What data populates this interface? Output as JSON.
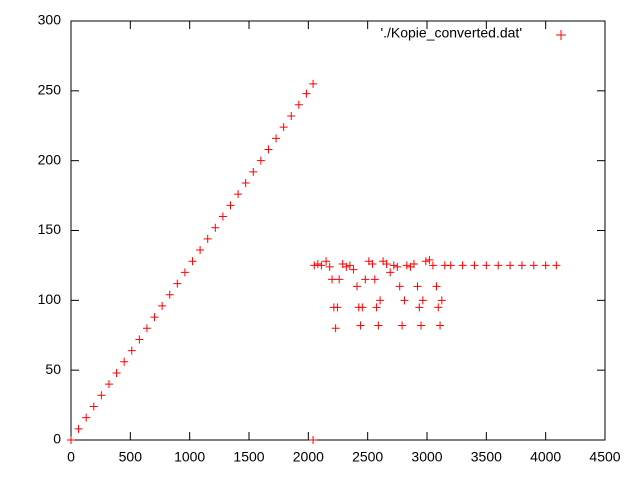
{
  "chart_data": {
    "type": "scatter",
    "xlim": [
      0,
      4500
    ],
    "xticks": [
      0,
      500,
      1000,
      1500,
      2000,
      2500,
      3000,
      3500,
      4000,
      4500
    ],
    "ylim": [
      0,
      300
    ],
    "yticks": [
      0,
      50,
      100,
      150,
      200,
      250,
      300
    ],
    "grid": false,
    "legend": "top-right",
    "series": [
      {
        "name": "'./Kopie_converted.dat'",
        "color": "#ff0000",
        "x": [
          0,
          64,
          128,
          192,
          256,
          320,
          384,
          448,
          512,
          576,
          640,
          704,
          768,
          832,
          896,
          960,
          1024,
          1088,
          1152,
          1216,
          1280,
          1344,
          1408,
          1472,
          1536,
          1600,
          1664,
          1728,
          1792,
          1856,
          1920,
          1984,
          2040,
          2040,
          2050,
          2080,
          2110,
          2150,
          2180,
          2200,
          2215,
          2230,
          2245,
          2260,
          2290,
          2320,
          2350,
          2380,
          2410,
          2425,
          2440,
          2455,
          2480,
          2510,
          2540,
          2560,
          2575,
          2590,
          2605,
          2630,
          2660,
          2690,
          2720,
          2750,
          2770,
          2790,
          2810,
          2830,
          2860,
          2890,
          2920,
          2935,
          2950,
          2965,
          2990,
          3020,
          3050,
          3080,
          3095,
          3110,
          3125,
          3150,
          3200,
          3300,
          3400,
          3500,
          3600,
          3700,
          3800,
          3900,
          4000,
          4090
        ],
        "values": [
          0,
          8,
          16,
          24,
          32,
          40,
          48,
          56,
          64,
          72,
          80,
          88,
          96,
          104,
          112,
          120,
          128,
          136,
          144,
          152,
          160,
          168,
          176,
          184,
          192,
          200,
          208,
          216,
          224,
          232,
          240,
          248,
          255,
          0,
          125,
          126,
          125,
          128,
          124,
          115,
          95,
          80,
          95,
          115,
          126,
          124,
          125,
          122,
          110,
          95,
          82,
          95,
          115,
          128,
          126,
          115,
          95,
          82,
          100,
          128,
          126,
          120,
          125,
          124,
          110,
          82,
          100,
          125,
          124,
          126,
          110,
          95,
          82,
          100,
          128,
          129,
          125,
          110,
          95,
          82,
          100,
          125,
          125,
          125,
          125,
          125,
          125,
          125,
          125,
          125,
          125,
          125
        ]
      }
    ]
  }
}
